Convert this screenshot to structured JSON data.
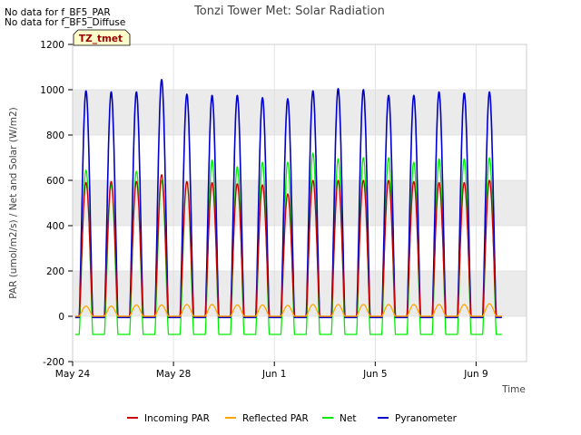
{
  "notes": [
    "No data for f_BF5_PAR",
    "No data for f_BF5_Diffuse"
  ],
  "badge": "TZ_tmet",
  "colors": {
    "incoming_par": "#cc0000",
    "reflected_par": "#ffa500",
    "net": "#00ee00",
    "pyranometer": "#0000cc",
    "band": "#ebebeb",
    "badge_bg": "#ffffcc",
    "badge_text": "#990000"
  },
  "chart_data": {
    "type": "line",
    "title": "Tonzi Tower Met: Solar Radiation",
    "xlabel": "Time",
    "ylabel": "PAR (umol/m2/s) / Net and Solar (W/m2)",
    "ylim": [
      -200,
      1200
    ],
    "yticks": [
      -200,
      0,
      200,
      400,
      600,
      800,
      1000,
      1200
    ],
    "xlim": [
      0,
      18
    ],
    "xticks": [
      {
        "value": 0,
        "label": "May 24"
      },
      {
        "value": 4,
        "label": "May 28"
      },
      {
        "value": 8,
        "label": "Jun 1"
      },
      {
        "value": 12,
        "label": "Jun 5"
      },
      {
        "value": 16,
        "label": "Jun 9"
      }
    ],
    "legend_position": "bottom",
    "x_unit": "days since May 24, daily cycle, peak at local noon",
    "series": [
      {
        "name": "Incoming PAR",
        "key": "incoming_par",
        "night": 0,
        "daily_peaks": [
          590,
          595,
          595,
          625,
          595,
          590,
          585,
          580,
          540,
          600,
          600,
          600,
          600,
          595,
          590,
          590,
          600
        ]
      },
      {
        "name": "Reflected PAR",
        "key": "reflected_par",
        "night": 0,
        "daily_peaks": [
          45,
          45,
          50,
          50,
          52,
          52,
          50,
          50,
          48,
          52,
          52,
          52,
          52,
          52,
          52,
          52,
          55
        ]
      },
      {
        "name": "Net",
        "key": "net",
        "night": -80,
        "daily_peaks": [
          645,
          580,
          640,
          600,
          595,
          690,
          660,
          680,
          680,
          720,
          695,
          700,
          700,
          680,
          695,
          695,
          700
        ]
      },
      {
        "name": "Pyranometer",
        "key": "pyranometer",
        "night": -5,
        "daily_peaks": [
          995,
          990,
          990,
          1045,
          980,
          975,
          975,
          965,
          960,
          995,
          1005,
          1000,
          975,
          975,
          990,
          985,
          990
        ]
      }
    ]
  }
}
